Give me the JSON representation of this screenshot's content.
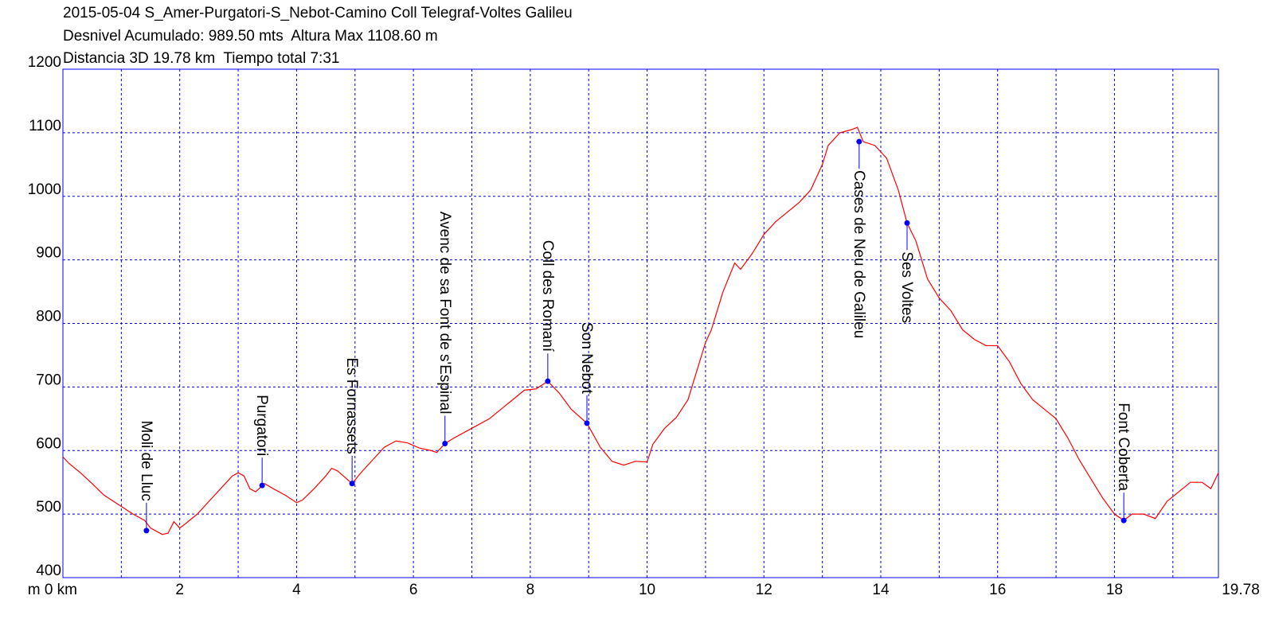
{
  "chart_data": {
    "type": "line",
    "title_lines": [
      "2015-05-04 S_Amer-Purgatori-S_Nebot-Camino Coll Telegraf-Voltes Galileu",
      "Desnivel Acumulado: 989.50 mts  Altura Max 1108.60 m",
      "Distancia 3D 19.78 km  Tiempo total 7:31"
    ],
    "xlim": [
      0,
      19.78
    ],
    "ylim": [
      400,
      1200
    ],
    "xticks": [
      {
        "value": 0,
        "label": "m 0 km"
      },
      2,
      4,
      6,
      8,
      10,
      12,
      14,
      16,
      18,
      19.78
    ],
    "xgrid": [
      1,
      2,
      3,
      4,
      5,
      6,
      7,
      8,
      9,
      10,
      11,
      12,
      13,
      14,
      15,
      16,
      17,
      18,
      19
    ],
    "yticks": [
      400,
      500,
      600,
      700,
      800,
      900,
      1000,
      1100,
      1200
    ],
    "grid": true,
    "frame_color": "#0000ff",
    "x": [
      0,
      0.1,
      0.3,
      0.5,
      0.7,
      0.9,
      1.0,
      1.2,
      1.4,
      1.5,
      1.7,
      1.8,
      1.9,
      2.0,
      2.1,
      2.3,
      2.5,
      2.7,
      2.9,
      3.0,
      3.1,
      3.2,
      3.3,
      3.45,
      3.6,
      3.8,
      4.0,
      4.1,
      4.3,
      4.5,
      4.6,
      4.7,
      4.8,
      4.95,
      5.1,
      5.3,
      5.5,
      5.7,
      5.9,
      6.1,
      6.3,
      6.4,
      6.54,
      6.7,
      6.9,
      7.1,
      7.3,
      7.5,
      7.7,
      7.9,
      8.1,
      8.3,
      8.5,
      8.7,
      8.97,
      9.2,
      9.4,
      9.6,
      9.8,
      10.0,
      10.1,
      10.3,
      10.5,
      10.7,
      10.9,
      11.0,
      11.1,
      11.3,
      11.5,
      11.6,
      11.8,
      12.0,
      12.2,
      12.4,
      12.6,
      12.8,
      13.0,
      13.1,
      13.3,
      13.5,
      13.6,
      13.7,
      13.9,
      14.1,
      14.3,
      14.45,
      14.6,
      14.8,
      15.0,
      15.2,
      15.4,
      15.6,
      15.8,
      16.0,
      16.2,
      16.4,
      16.6,
      16.8,
      17.0,
      17.2,
      17.4,
      17.6,
      17.8,
      18.0,
      18.16,
      18.3,
      18.5,
      18.7,
      18.9,
      19.1,
      19.3,
      19.5,
      19.65,
      19.78
    ],
    "series": [
      {
        "color": "#ff0000",
        "values": [
          590,
          580,
          565,
          548,
          530,
          518,
          512,
          500,
          490,
          478,
          468,
          470,
          488,
          478,
          485,
          500,
          520,
          540,
          560,
          565,
          560,
          540,
          535,
          548,
          540,
          530,
          518,
          522,
          540,
          560,
          572,
          568,
          560,
          548,
          565,
          585,
          605,
          615,
          612,
          604,
          600,
          597,
          611,
          620,
          630,
          640,
          650,
          665,
          680,
          695,
          697,
          709,
          690,
          665,
          643,
          605,
          583,
          577,
          583,
          582,
          610,
          635,
          652,
          680,
          740,
          770,
          790,
          850,
          895,
          885,
          910,
          940,
          960,
          975,
          990,
          1010,
          1050,
          1080,
          1100,
          1105,
          1108.6,
          1086,
          1080,
          1060,
          1010,
          958,
          930,
          870,
          840,
          820,
          790,
          775,
          765,
          765,
          740,
          705,
          680,
          665,
          650,
          620,
          585,
          555,
          525,
          500,
          490,
          500,
          500,
          493,
          520,
          535,
          550,
          550,
          540,
          565
        ]
      }
    ],
    "annotations": [
      {
        "text": "Moli de Lluc",
        "x": 1.43,
        "y": 474
      },
      {
        "text": "Purgatori",
        "x": 3.41,
        "y": 545
      },
      {
        "text": "Es Fornassets",
        "x": 4.95,
        "y": 548
      },
      {
        "text": "Avenc de sa Font de s'Espinal",
        "x": 6.54,
        "y": 611
      },
      {
        "text": "Coll des Romaní",
        "x": 8.3,
        "y": 709
      },
      {
        "text": "Son Nebot",
        "x": 8.97,
        "y": 643
      },
      {
        "text": "Cases de Neu de Galileu",
        "x": 13.63,
        "y": 1086
      },
      {
        "text": "Ses Voltes",
        "x": 14.45,
        "y": 958
      },
      {
        "text": "Font Coberta",
        "x": 18.16,
        "y": 490
      }
    ],
    "annotation_color": "#0000ff"
  }
}
